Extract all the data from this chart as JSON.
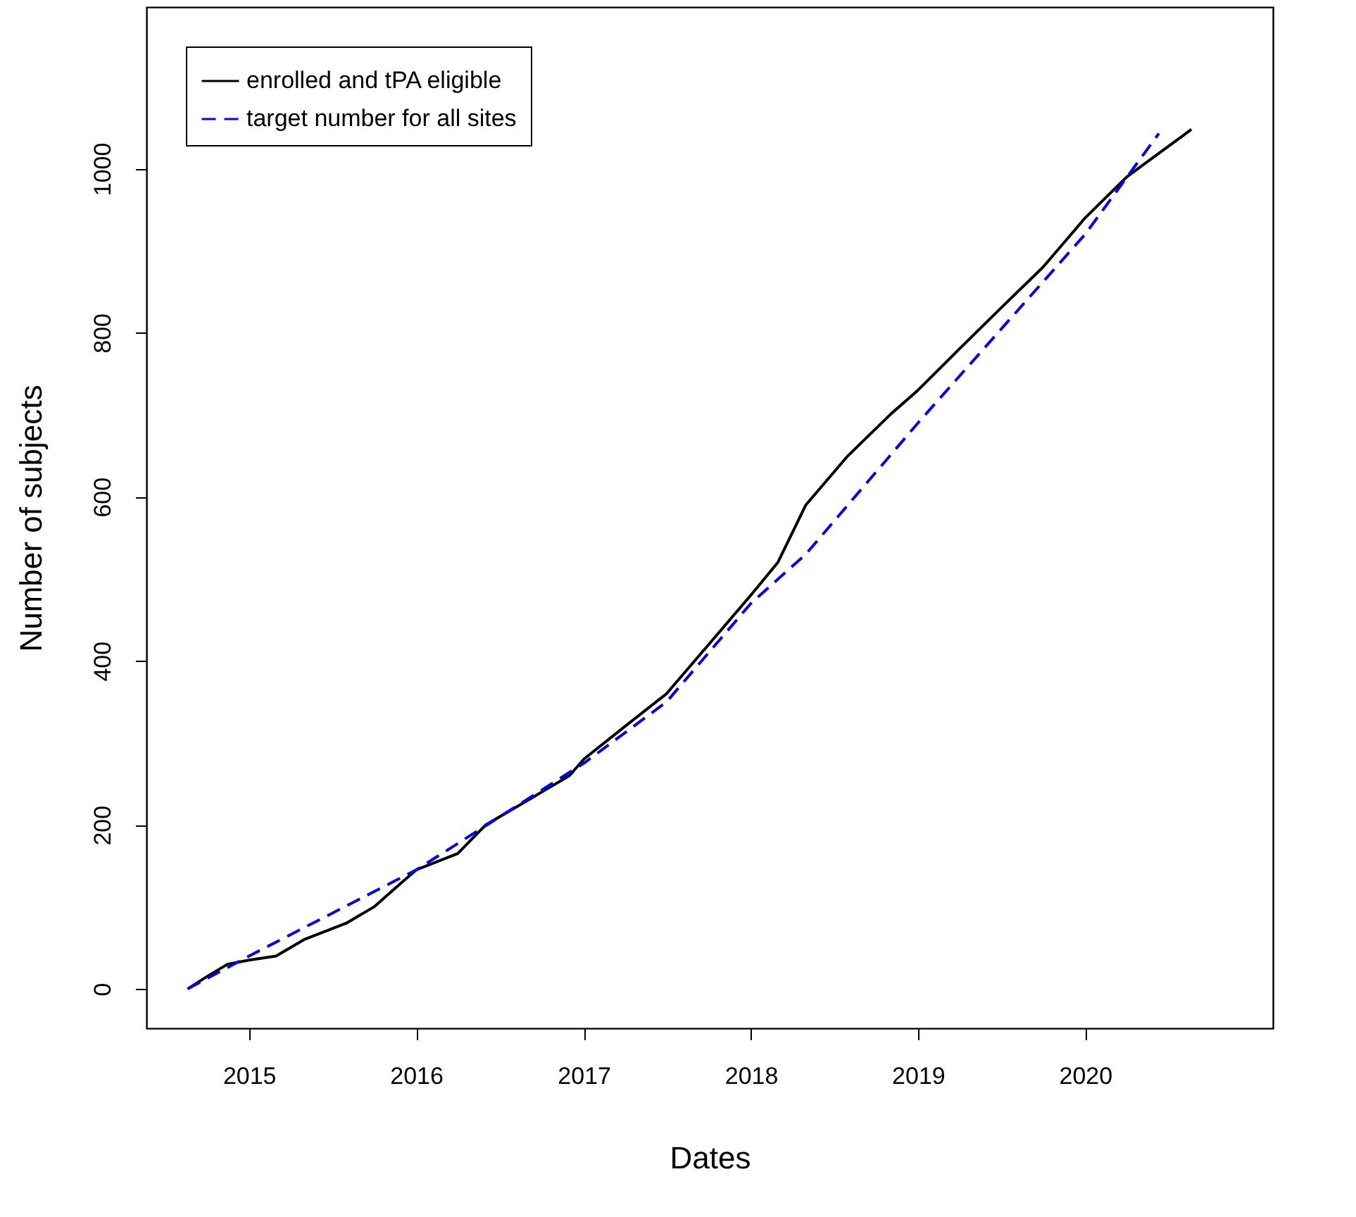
{
  "chart_data": {
    "type": "line",
    "xlabel": "Dates",
    "ylabel": "Number of subjects",
    "xlim": [
      "2014-05-22",
      "2021-02-14"
    ],
    "xticks": [
      "2015",
      "2016",
      "2017",
      "2018",
      "2019",
      "2020"
    ],
    "ylim": [
      -48,
      1197
    ],
    "yticks": [
      0,
      200,
      400,
      600,
      800,
      1000
    ],
    "grid": false,
    "legend": "top left",
    "marker": "none",
    "series": [
      {
        "name": "enrolled and tPA eligible",
        "color": "#000000",
        "line_style": "solid",
        "x": [
          "2014-08-20",
          "2014-10-01",
          "2014-11-15",
          "2015-01-01",
          "2015-03-01",
          "2015-05-01",
          "2015-08-01",
          "2015-10-01",
          "2015-12-01",
          "2016-01-01",
          "2016-04-01",
          "2016-06-01",
          "2016-09-01",
          "2016-12-01",
          "2017-01-01",
          "2017-04-01",
          "2017-07-01",
          "2017-10-01",
          "2018-01-01",
          "2018-03-01",
          "2018-05-01",
          "2018-08-01",
          "2018-11-01",
          "2019-01-01",
          "2019-04-01",
          "2019-07-01",
          "2019-10-01",
          "2020-01-01",
          "2020-04-01",
          "2020-06-01",
          "2020-08-01",
          "2020-08-20"
        ],
        "values": [
          0,
          15,
          30,
          35,
          40,
          60,
          80,
          100,
          130,
          145,
          165,
          200,
          230,
          260,
          280,
          320,
          360,
          420,
          480,
          520,
          590,
          650,
          700,
          730,
          780,
          830,
          880,
          940,
          990,
          1015,
          1040,
          1048
        ]
      },
      {
        "name": "target number for all sites",
        "color": "#0000ff",
        "line_style": "dashed",
        "x": [
          "2014-08-20",
          "2015-01-01",
          "2016-01-01",
          "2017-01-01",
          "2017-07-01",
          "2018-01-01",
          "2018-05-01",
          "2019-01-01",
          "2020-01-01",
          "2020-06-10"
        ],
        "values": [
          0,
          40,
          145,
          275,
          350,
          470,
          530,
          690,
          920,
          1043
        ]
      }
    ]
  }
}
